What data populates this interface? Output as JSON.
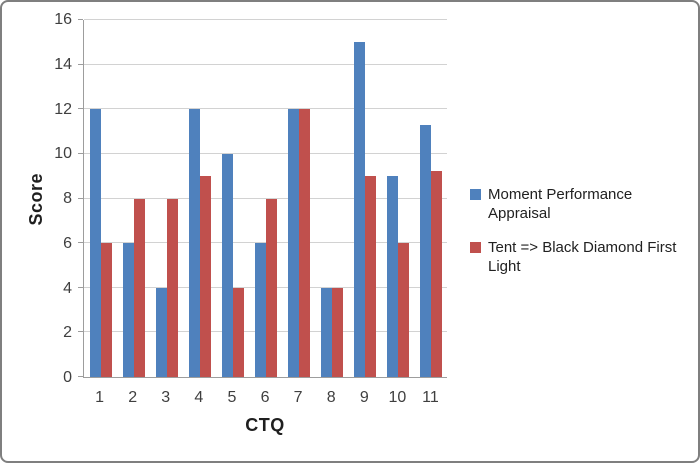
{
  "chart_data": {
    "type": "bar",
    "title": "",
    "xlabel": "CTQ",
    "ylabel": "Score",
    "categories": [
      "1",
      "2",
      "3",
      "4",
      "5",
      "6",
      "7",
      "8",
      "9",
      "10",
      "11"
    ],
    "series": [
      {
        "name": "Moment Performance Appraisal",
        "color": "#4F81BD",
        "values": [
          12,
          6,
          4,
          12,
          10,
          6,
          12,
          4,
          15,
          9,
          11.3
        ]
      },
      {
        "name": "Tent => Black Diamond First Light",
        "color": "#C0504D",
        "values": [
          6,
          8,
          8,
          9,
          4,
          8,
          12,
          4,
          9,
          6,
          9.25
        ]
      }
    ],
    "ylim": [
      0,
      16
    ],
    "yticks": [
      0,
      2,
      4,
      6,
      8,
      10,
      12,
      14,
      16
    ],
    "grid": true,
    "legend_position": "right"
  }
}
